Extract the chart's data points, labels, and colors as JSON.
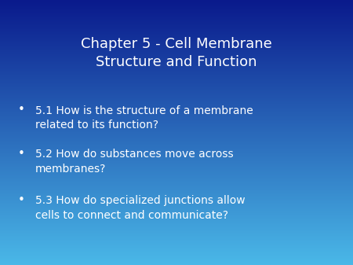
{
  "title_line1": "Chapter 5 - Cell Membrane",
  "title_line2": "Structure and Function",
  "bullet_points": [
    "5.1 How is the structure of a membrane\nrelated to its function?",
    "5.2 How do substances move across\nmembranes?",
    "5.3 How do specialized junctions allow\ncells to connect and communicate?"
  ],
  "bg_color_top": "#0a1a8c",
  "bg_color_bottom": "#4ab8e8",
  "text_color": "#ffffff",
  "title_fontsize": 13,
  "bullet_fontsize": 10,
  "bullet_marker": "•",
  "figsize": [
    4.5,
    3.37
  ],
  "dpi": 100
}
